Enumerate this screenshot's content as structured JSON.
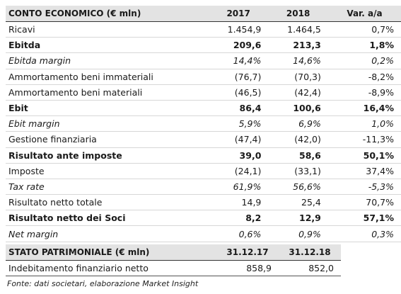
{
  "income": {
    "headers": [
      "CONTO ECONOMICO (€ mln)",
      "2017",
      "2018",
      "Var. a/a"
    ],
    "rows": [
      {
        "label": "Ricavi",
        "v2017": "1.454,9",
        "v2018": "1.464,5",
        "var": "0,7%",
        "style": "normal"
      },
      {
        "label": "Ebitda",
        "v2017": "209,6",
        "v2018": "213,3",
        "var": "1,8%",
        "style": "bold"
      },
      {
        "label": "Ebitda margin",
        "v2017": "14,4%",
        "v2018": "14,6%",
        "var": "0,2%",
        "style": "italic"
      },
      {
        "label": "Ammortamento beni immateriali",
        "v2017": "(76,7)",
        "v2018": "(70,3)",
        "var": "-8,2%",
        "style": "normal"
      },
      {
        "label": "Ammortamento beni materiali",
        "v2017": "(46,5)",
        "v2018": "(42,4)",
        "var": "-8,9%",
        "style": "normal"
      },
      {
        "label": "Ebit",
        "v2017": "86,4",
        "v2018": "100,6",
        "var": "16,4%",
        "style": "bold"
      },
      {
        "label": "Ebit margin",
        "v2017": "5,9%",
        "v2018": "6,9%",
        "var": "1,0%",
        "style": "italic"
      },
      {
        "label": "Gestione finanziaria",
        "v2017": "(47,4)",
        "v2018": "(42,0)",
        "var": "-11,3%",
        "style": "normal"
      },
      {
        "label": "Risultato ante imposte",
        "v2017": "39,0",
        "v2018": "58,6",
        "var": "50,1%",
        "style": "bold"
      },
      {
        "label": "Imposte",
        "v2017": "(24,1)",
        "v2018": "(33,1)",
        "var": "37,4%",
        "style": "normal"
      },
      {
        "label": "Tax rate",
        "v2017": "61,9%",
        "v2018": "56,6%",
        "var": "-5,3%",
        "style": "italic"
      },
      {
        "label": "Risultato netto totale",
        "v2017": "14,9",
        "v2018": "25,4",
        "var": "70,7%",
        "style": "normal"
      },
      {
        "label": "Risultato netto dei Soci",
        "v2017": "8,2",
        "v2018": "12,9",
        "var": "57,1%",
        "style": "bold"
      },
      {
        "label": "Net margin",
        "v2017": "0,6%",
        "v2018": "0,9%",
        "var": "0,3%",
        "style": "italic"
      }
    ]
  },
  "balance": {
    "headers": [
      "STATO PATRIMONIALE (€ mln)",
      "31.12.17",
      "31.12.18"
    ],
    "rows": [
      {
        "label": "Indebitamento finanziario netto",
        "v2017": "858,9",
        "v2018": "852,0"
      }
    ]
  },
  "footnote": "Fonte: dati societari, elaborazione Market Insight"
}
